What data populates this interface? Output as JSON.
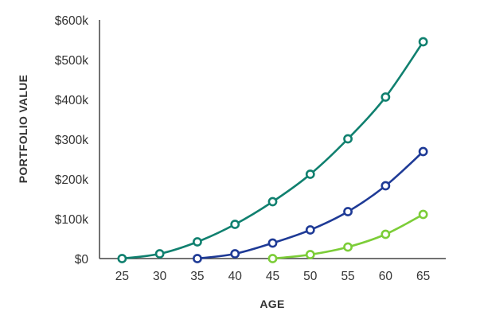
{
  "chart_data": {
    "type": "line",
    "title": "",
    "xlabel": "AGE",
    "ylabel": "PORTFOLIO VALUE",
    "x_ticks": [
      "25",
      "30",
      "35",
      "40",
      "45",
      "50",
      "55",
      "60",
      "65"
    ],
    "y_ticks": [
      "$0",
      "$100k",
      "$200k",
      "$300k",
      "$400k",
      "$500k",
      "$600k"
    ],
    "xlim": [
      22,
      68
    ],
    "ylim": [
      0,
      600000
    ],
    "grid": false,
    "legend": "none",
    "series": [
      {
        "color": "#10806f",
        "x": [
          25,
          30,
          35,
          40,
          45,
          50,
          55,
          60,
          65
        ],
        "y": [
          0,
          12000,
          42000,
          86000,
          143000,
          212000,
          301000,
          406000,
          545000
        ]
      },
      {
        "color": "#1e3a96",
        "x": [
          35,
          40,
          45,
          50,
          55,
          60,
          65
        ],
        "y": [
          0,
          12000,
          39000,
          72000,
          118000,
          183000,
          269000
        ]
      },
      {
        "color": "#7ccd38",
        "x": [
          45,
          50,
          55,
          60,
          65
        ],
        "y": [
          0,
          10000,
          29000,
          61000,
          111000
        ]
      }
    ]
  }
}
